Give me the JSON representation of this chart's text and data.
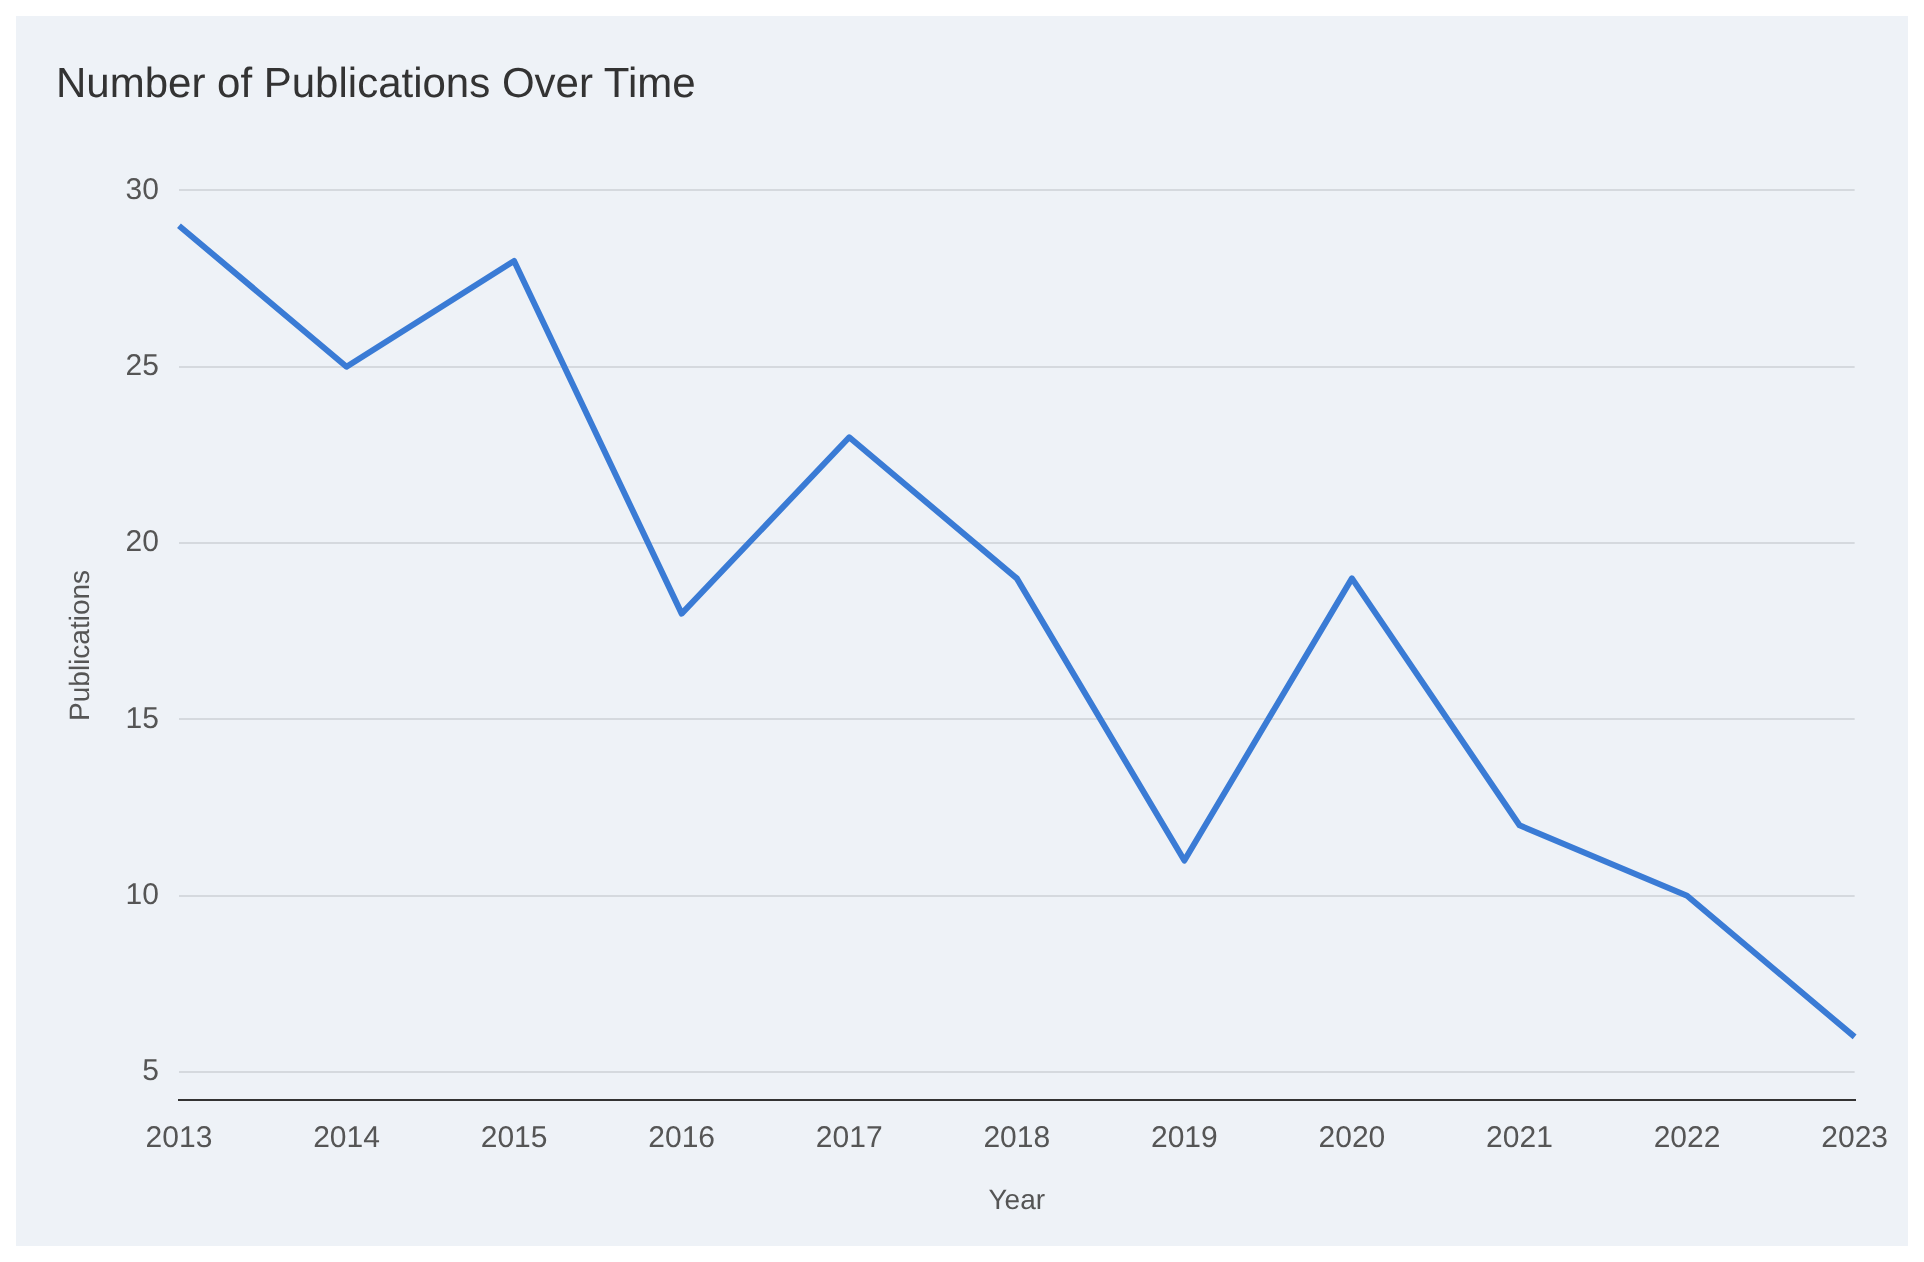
{
  "chart_data": {
    "type": "line",
    "title": "Number of Publications Over Time",
    "xlabel": "Year",
    "ylabel": "Publications",
    "categories": [
      "2013",
      "2014",
      "2015",
      "2016",
      "2017",
      "2018",
      "2019",
      "2020",
      "2021",
      "2022",
      "2023"
    ],
    "series": [
      {
        "color": "#3a7bd5",
        "values": [
          29,
          25,
          28,
          18,
          23,
          19,
          11,
          19,
          12,
          10,
          6
        ]
      }
    ],
    "ylim": [
      4.2,
      30
    ],
    "yticks": [
      5,
      10,
      15,
      20,
      25,
      30
    ],
    "grid": "y",
    "legend": false,
    "marker": "none",
    "line_style": "solid"
  }
}
